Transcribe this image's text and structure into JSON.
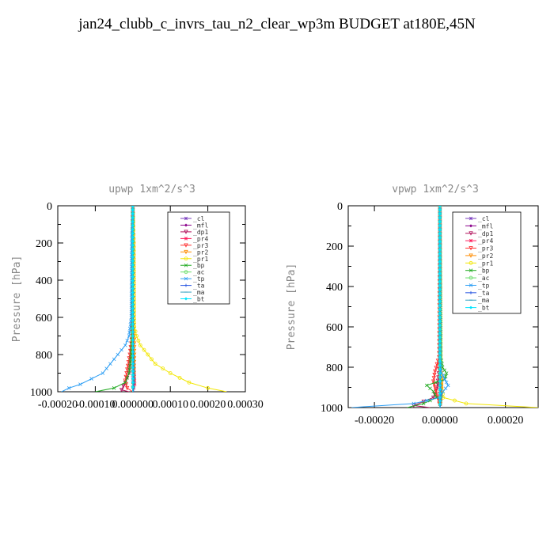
{
  "page_title": "jan24_clubb_c_invrs_tau_n2_clear_wp3m  BUDGET at180E,45N",
  "colors": {
    "cl": "#7b3fbf",
    "mfl": "#8b008b",
    "dp1": "#b0105a",
    "pr4": "#ff1a5a",
    "pr3": "#ff3030",
    "pr2": "#ff8c00",
    "pr1": "#f2e600",
    "bp": "#22aa22",
    "ac": "#66dd66",
    "tp": "#2a9df4",
    "ta": "#2050e0",
    "ma": "#30a0c0",
    "bt": "#00e5ff"
  },
  "chart_data": [
    {
      "type": "line",
      "title": "upwp  1xm^2/s^3",
      "ylabel": "Pressure [hPa]",
      "xlim": [
        -0.0002,
        0.0003
      ],
      "ylim": [
        1000,
        0
      ],
      "x_ticks": [
        "-0.00020",
        "-0.00010",
        "0.000000",
        "0.00010",
        "0.00020",
        "0.00030"
      ],
      "x_tick_values": [
        -0.0002,
        -0.0001,
        0.0,
        0.0001,
        0.0002,
        0.0003
      ],
      "y_ticks": [
        "0",
        "200",
        "400",
        "600",
        "800",
        "1000"
      ],
      "y_tick_values": [
        0,
        200,
        400,
        600,
        800,
        1000
      ],
      "legend": [
        "_cl",
        "_mfl",
        "_dp1",
        "_pr4",
        "_pr3",
        "_pr2",
        "_pr1",
        "_bp",
        "_ac",
        "_tp",
        "_ta",
        "_ma",
        "_bt"
      ],
      "legend_position": "top-right",
      "series": [
        {
          "name": "_cl",
          "p": [
            0,
            700,
            850,
            950,
            1000
          ],
          "x": [
            0,
            0,
            0,
            0,
            0
          ]
        },
        {
          "name": "_mfl",
          "p": [
            0,
            700,
            850,
            950,
            1000
          ],
          "x": [
            0,
            0,
            2e-06,
            3e-06,
            0
          ]
        },
        {
          "name": "_dp1",
          "p": [
            0,
            700,
            800,
            900,
            950,
            990,
            1000
          ],
          "x": [
            0,
            -1e-06,
            -5e-06,
            -1e-05,
            -2e-05,
            -3e-05,
            -1e-05
          ]
        },
        {
          "name": "_pr4",
          "p": [
            0,
            700,
            800,
            900,
            960,
            1000
          ],
          "x": [
            0,
            0,
            2e-06,
            4e-06,
            5e-06,
            0
          ]
        },
        {
          "name": "_pr3",
          "p": [
            0,
            700,
            800,
            880,
            940,
            980,
            1000
          ],
          "x": [
            0,
            -2e-06,
            -8e-06,
            -1.5e-05,
            -2e-05,
            -1.5e-05,
            0
          ]
        },
        {
          "name": "_pr2",
          "p": [
            0,
            200,
            600,
            700,
            800,
            900,
            1000
          ],
          "x": [
            0,
            2e-06,
            3e-06,
            4e-06,
            4e-06,
            3e-06,
            0
          ]
        },
        {
          "name": "_pr1",
          "p": [
            0,
            200,
            650,
            700,
            750,
            800,
            850,
            900,
            950,
            980,
            1000
          ],
          "x": [
            0,
            3e-06,
            4e-06,
            1e-05,
            2e-05,
            4e-05,
            6e-05,
            0.0001,
            0.00015,
            0.0002,
            0.00025
          ]
        },
        {
          "name": "_bp",
          "p": [
            0,
            700,
            800,
            900,
            950,
            980,
            1000
          ],
          "x": [
            0,
            -2e-06,
            -4e-06,
            -1e-05,
            -2e-05,
            -5e-05,
            -0.0001
          ]
        },
        {
          "name": "_ac",
          "p": [
            0,
            700,
            850,
            950,
            1000
          ],
          "x": [
            0,
            0,
            1e-06,
            2e-06,
            0
          ]
        },
        {
          "name": "_tp",
          "p": [
            0,
            200,
            600,
            700,
            750,
            800,
            850,
            900,
            930,
            960,
            980,
            1000
          ],
          "x": [
            0,
            -3e-06,
            -4e-06,
            -1e-05,
            -2e-05,
            -4e-05,
            -6e-05,
            -8e-05,
            -0.00011,
            -0.00014,
            -0.00017,
            -0.00019
          ]
        },
        {
          "name": "_ta",
          "p": [
            0,
            700,
            850,
            950,
            1000
          ],
          "x": [
            0,
            1e-06,
            2e-06,
            3e-06,
            2e-06
          ]
        },
        {
          "name": "_ma",
          "p": [
            0,
            700,
            850,
            950,
            1000
          ],
          "x": [
            0,
            0,
            1e-06,
            1e-06,
            0
          ]
        },
        {
          "name": "_bt",
          "p": [
            0,
            700,
            850,
            950,
            1000
          ],
          "x": [
            0,
            0,
            0,
            0,
            0
          ]
        }
      ]
    },
    {
      "type": "line",
      "title": "vpwp  1xm^2/s^3",
      "ylabel": "Pressure [hPa]",
      "xlim": [
        -0.00028,
        0.0003
      ],
      "ylim": [
        1000,
        0
      ],
      "x_ticks": [
        "-0.00020",
        "0.00000",
        "0.00020"
      ],
      "x_tick_values": [
        -0.0002,
        0.0,
        0.0002
      ],
      "y_ticks": [
        "0",
        "200",
        "400",
        "600",
        "800",
        "1000"
      ],
      "y_tick_values": [
        0,
        200,
        400,
        600,
        800,
        1000
      ],
      "legend": [
        "_cl",
        "_mfl",
        "_dp1",
        "_pr4",
        "_pr3",
        "_pr2",
        "_pr1",
        "_bp",
        "_ac",
        "_tp",
        "_ta",
        "_ma",
        "_bt"
      ],
      "legend_position": "top-right",
      "series": [
        {
          "name": "_cl",
          "p": [
            0,
            700,
            850,
            950,
            1000
          ],
          "x": [
            0,
            0,
            0,
            0,
            0
          ]
        },
        {
          "name": "_mfl",
          "p": [
            0,
            700,
            850,
            950,
            1000
          ],
          "x": [
            0,
            0,
            0,
            0,
            0
          ]
        },
        {
          "name": "_dp1",
          "p": [
            0,
            750,
            850,
            900,
            950,
            990,
            1000
          ],
          "x": [
            0,
            0,
            -5e-06,
            -8e-06,
            -2e-05,
            -8e-05,
            -3e-05
          ]
        },
        {
          "name": "_pr4",
          "p": [
            0,
            750,
            850,
            900,
            950,
            1000
          ],
          "x": [
            0,
            0,
            5e-06,
            5e-06,
            3e-06,
            0
          ]
        },
        {
          "name": "_pr3",
          "p": [
            0,
            750,
            820,
            870,
            900,
            930,
            960,
            1000
          ],
          "x": [
            0,
            -3e-06,
            -1.5e-05,
            -2e-05,
            -1.5e-05,
            -1e-05,
            -5e-06,
            0
          ]
        },
        {
          "name": "_pr2",
          "p": [
            0,
            750,
            850,
            950,
            1000
          ],
          "x": [
            0,
            0,
            3e-06,
            4e-06,
            0
          ]
        },
        {
          "name": "_pr1",
          "p": [
            0,
            750,
            850,
            900,
            950,
            980,
            1000
          ],
          "x": [
            0,
            2e-06,
            4e-06,
            5e-06,
            1e-05,
            8e-05,
            0.0003
          ]
        },
        {
          "name": "_bp",
          "p": [
            0,
            750,
            800,
            830,
            860,
            890,
            920,
            950,
            980,
            1000
          ],
          "x": [
            0,
            3e-06,
            8e-06,
            2e-05,
            1.5e-05,
            -4e-05,
            -2e-05,
            -1e-05,
            -5e-05,
            -0.0001
          ]
        },
        {
          "name": "_ac",
          "p": [
            0,
            750,
            850,
            950,
            1000
          ],
          "x": [
            0,
            0,
            0,
            2e-06,
            0
          ]
        },
        {
          "name": "_tp",
          "p": [
            0,
            750,
            820,
            860,
            890,
            920,
            950,
            980,
            1000
          ],
          "x": [
            0,
            0,
            3e-06,
            1.5e-05,
            2.5e-05,
            1e-05,
            0,
            -8e-05,
            -0.00027
          ]
        },
        {
          "name": "_ta",
          "p": [
            0,
            750,
            850,
            950,
            1000
          ],
          "x": [
            0,
            0,
            2e-06,
            3e-06,
            1e-06
          ]
        },
        {
          "name": "_ma",
          "p": [
            0,
            750,
            850,
            950,
            1000
          ],
          "x": [
            0,
            0,
            1e-06,
            1e-06,
            0
          ]
        },
        {
          "name": "_bt",
          "p": [
            0,
            750,
            850,
            950,
            1000
          ],
          "x": [
            0,
            0,
            0,
            0,
            0
          ]
        }
      ]
    }
  ]
}
